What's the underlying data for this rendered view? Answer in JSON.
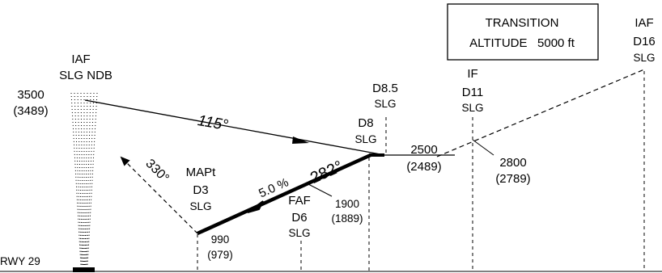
{
  "transition_altitude": {
    "line1": "TRANSITION",
    "line2": "ALTITUDE   5000 ft"
  },
  "fixes": {
    "iaf_ndb": {
      "role": "IAF",
      "name": "SLG NDB",
      "alt": "3500",
      "alt_sub": "(3489)"
    },
    "iaf_d16": {
      "role": "IAF",
      "dme": "D16",
      "station": "SLG"
    },
    "if_d11": {
      "role": "IF",
      "dme": "D11",
      "station": "SLG"
    },
    "d8_5": {
      "dme": "D8.5",
      "station": "SLG"
    },
    "d8": {
      "dme": "D8",
      "station": "SLG"
    },
    "faf_d6": {
      "role": "FAF",
      "dme": "D6",
      "station": "SLG"
    },
    "mapt_d3": {
      "role": "MAPt",
      "dme": "D3",
      "station": "SLG"
    }
  },
  "altitudes": {
    "d8_level": {
      "alt": "2500",
      "alt_sub": "(2489)"
    },
    "if_level": {
      "alt": "2800",
      "alt_sub": "(2789)"
    },
    "faf_level": {
      "alt": "1900",
      "alt_sub": "(1889)"
    },
    "mapt_level": {
      "alt": "990",
      "alt_sub": "(979)"
    }
  },
  "courses": {
    "inbound": "115°",
    "final": "282°",
    "gradient": "5.0 %",
    "missed": "330°"
  },
  "runway": "RWY 29"
}
